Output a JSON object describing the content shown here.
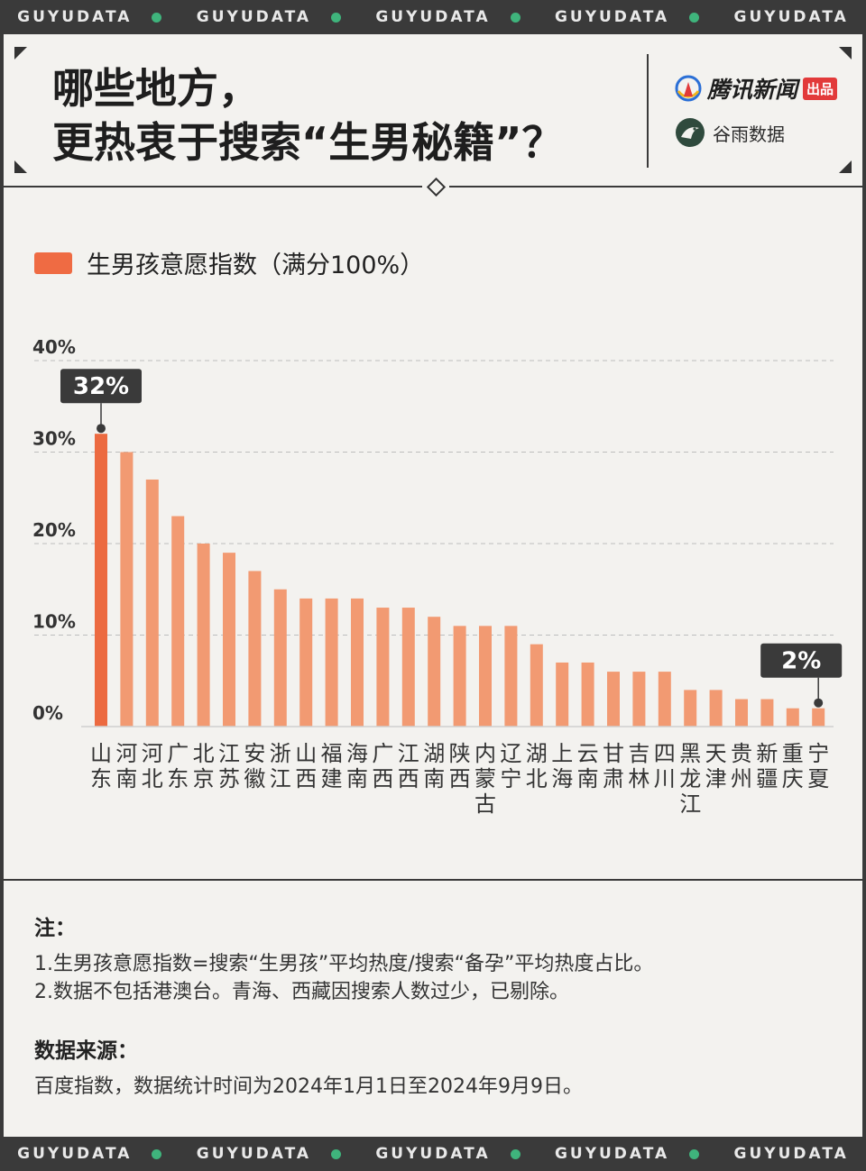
{
  "brand_band": [
    "GUYUDATA",
    "GUYUDATA",
    "GUYUDATA",
    "GUYUDATA",
    "GUYUDATA"
  ],
  "header": {
    "title_line1": "哪些地方，",
    "title_line2": "更热衷于搜索“生男秘籍”？",
    "logo1_text": "腾讯新闻",
    "logo1_tag": "出品",
    "logo2_text": "谷雨数据",
    "logo1_icon": "tencent-news-icon",
    "logo2_icon": "guyu-bird-icon"
  },
  "colors": {
    "bar": "#f29a72",
    "bar_highlight": "#ec6a40",
    "legend": "#ef6b43",
    "dark": "#3a3a3a",
    "accent_dot": "#3fb47c"
  },
  "chart_data": {
    "type": "bar",
    "legend": "生男孩意愿指数（满分100%）",
    "categories": [
      "山东",
      "河南",
      "河北",
      "广东",
      "北京",
      "江苏",
      "安徽",
      "浙江",
      "山西",
      "福建",
      "海南",
      "广西",
      "江西",
      "湖南",
      "陕西",
      "内蒙古",
      "辽宁",
      "湖北",
      "上海",
      "云南",
      "甘肃",
      "吉林",
      "四川",
      "黑龙江",
      "天津",
      "贵州",
      "新疆",
      "重庆",
      "宁夏"
    ],
    "values": [
      32,
      30,
      27,
      23,
      20,
      19,
      17,
      15,
      14,
      14,
      14,
      13,
      13,
      12,
      11,
      11,
      11,
      9,
      7,
      7,
      6,
      6,
      6,
      4,
      4,
      3,
      3,
      2,
      2
    ],
    "ylim": [
      0,
      40
    ],
    "yticks": [
      "0%",
      "10%",
      "20%",
      "30%",
      "40%"
    ],
    "ytick_values": [
      0,
      10,
      20,
      30,
      40
    ],
    "grid": true,
    "callouts": [
      {
        "category_index": 0,
        "label": "32%"
      },
      {
        "category_index": 28,
        "label": "2%"
      }
    ]
  },
  "notes": {
    "heading": "注：",
    "lines": [
      "1.生男孩意愿指数=搜索“生男孩”平均热度/搜索“备孕”平均热度占比。",
      "2.数据不包括港澳台。青海、西藏因搜索人数过少，已剔除。"
    ],
    "source_heading": "数据来源：",
    "source_text": "百度指数，数据统计时间为2024年1月1日至2024年9月9日。"
  }
}
